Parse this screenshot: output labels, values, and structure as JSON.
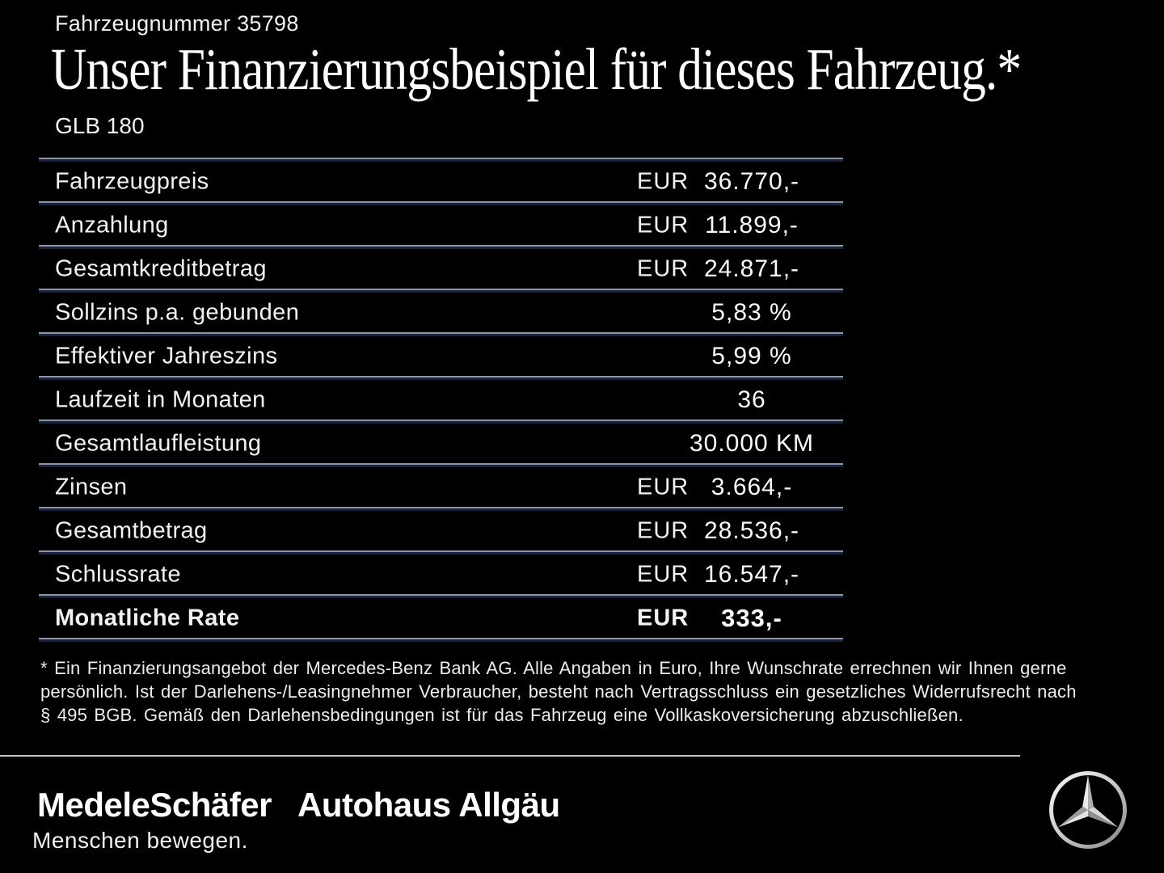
{
  "colors": {
    "background": "#000000",
    "text": "#f5f5f5",
    "divider_light": "#8d96a5",
    "divider_dark": "#152340",
    "footer_divider": "#c6c6c6",
    "star_silver": "#d9d9d9"
  },
  "header": {
    "vehicle_number": "Fahrzeugnummer 35798",
    "title": "Unser Finanzierungsbeispiel für dieses Fahrzeug.*",
    "model": "GLB 180"
  },
  "table": {
    "rows": [
      {
        "label": "Fahrzeugpreis",
        "currency": "EUR",
        "value": "36.770,-",
        "bold": false
      },
      {
        "label": "Anzahlung",
        "currency": "EUR",
        "value": "11.899,-",
        "bold": false
      },
      {
        "label": "Gesamtkreditbetrag",
        "currency": "EUR",
        "value": "24.871,-",
        "bold": false
      },
      {
        "label": "Sollzins p.a. gebunden",
        "currency": "",
        "value": "5,83 %",
        "bold": false
      },
      {
        "label": "Effektiver Jahreszins",
        "currency": "",
        "value": "5,99 %",
        "bold": false
      },
      {
        "label": "Laufzeit in Monaten",
        "currency": "",
        "value": "36",
        "bold": false
      },
      {
        "label": "Gesamtlaufleistung",
        "currency": "",
        "value": "30.000 KM",
        "bold": false
      },
      {
        "label": "Zinsen",
        "currency": "EUR",
        "value": "3.664,-",
        "bold": false
      },
      {
        "label": "Gesamtbetrag",
        "currency": "EUR",
        "value": "28.536,-",
        "bold": false
      },
      {
        "label": "Schlussrate",
        "currency": "EUR",
        "value": "16.547,-",
        "bold": false
      },
      {
        "label": "Monatliche Rate",
        "currency": "EUR",
        "value": "333,-",
        "bold": true
      }
    ]
  },
  "footnote": {
    "lines": [
      "* Ein Finanzierungsangebot der Mercedes-Benz Bank AG. Alle Angaben in Euro, Ihre Wunschrate errechnen wir Ihnen gerne",
      "persönlich. Ist der Darlehens-/Leasingnehmer Verbraucher, besteht nach Vertragsschluss ein gesetzliches Widerrufsrecht nach",
      "§ 495 BGB. Gemäß den Darlehensbedingungen ist für das Fahrzeug eine Vollkaskoversicherung abzuschließen."
    ]
  },
  "footer": {
    "dealer_logo": "MedeleSchäfer",
    "dealer_tagline": "Menschen bewegen.",
    "partner_logo": "Autohaus Allgäu",
    "brand_icon": "mercedes-star-icon"
  }
}
